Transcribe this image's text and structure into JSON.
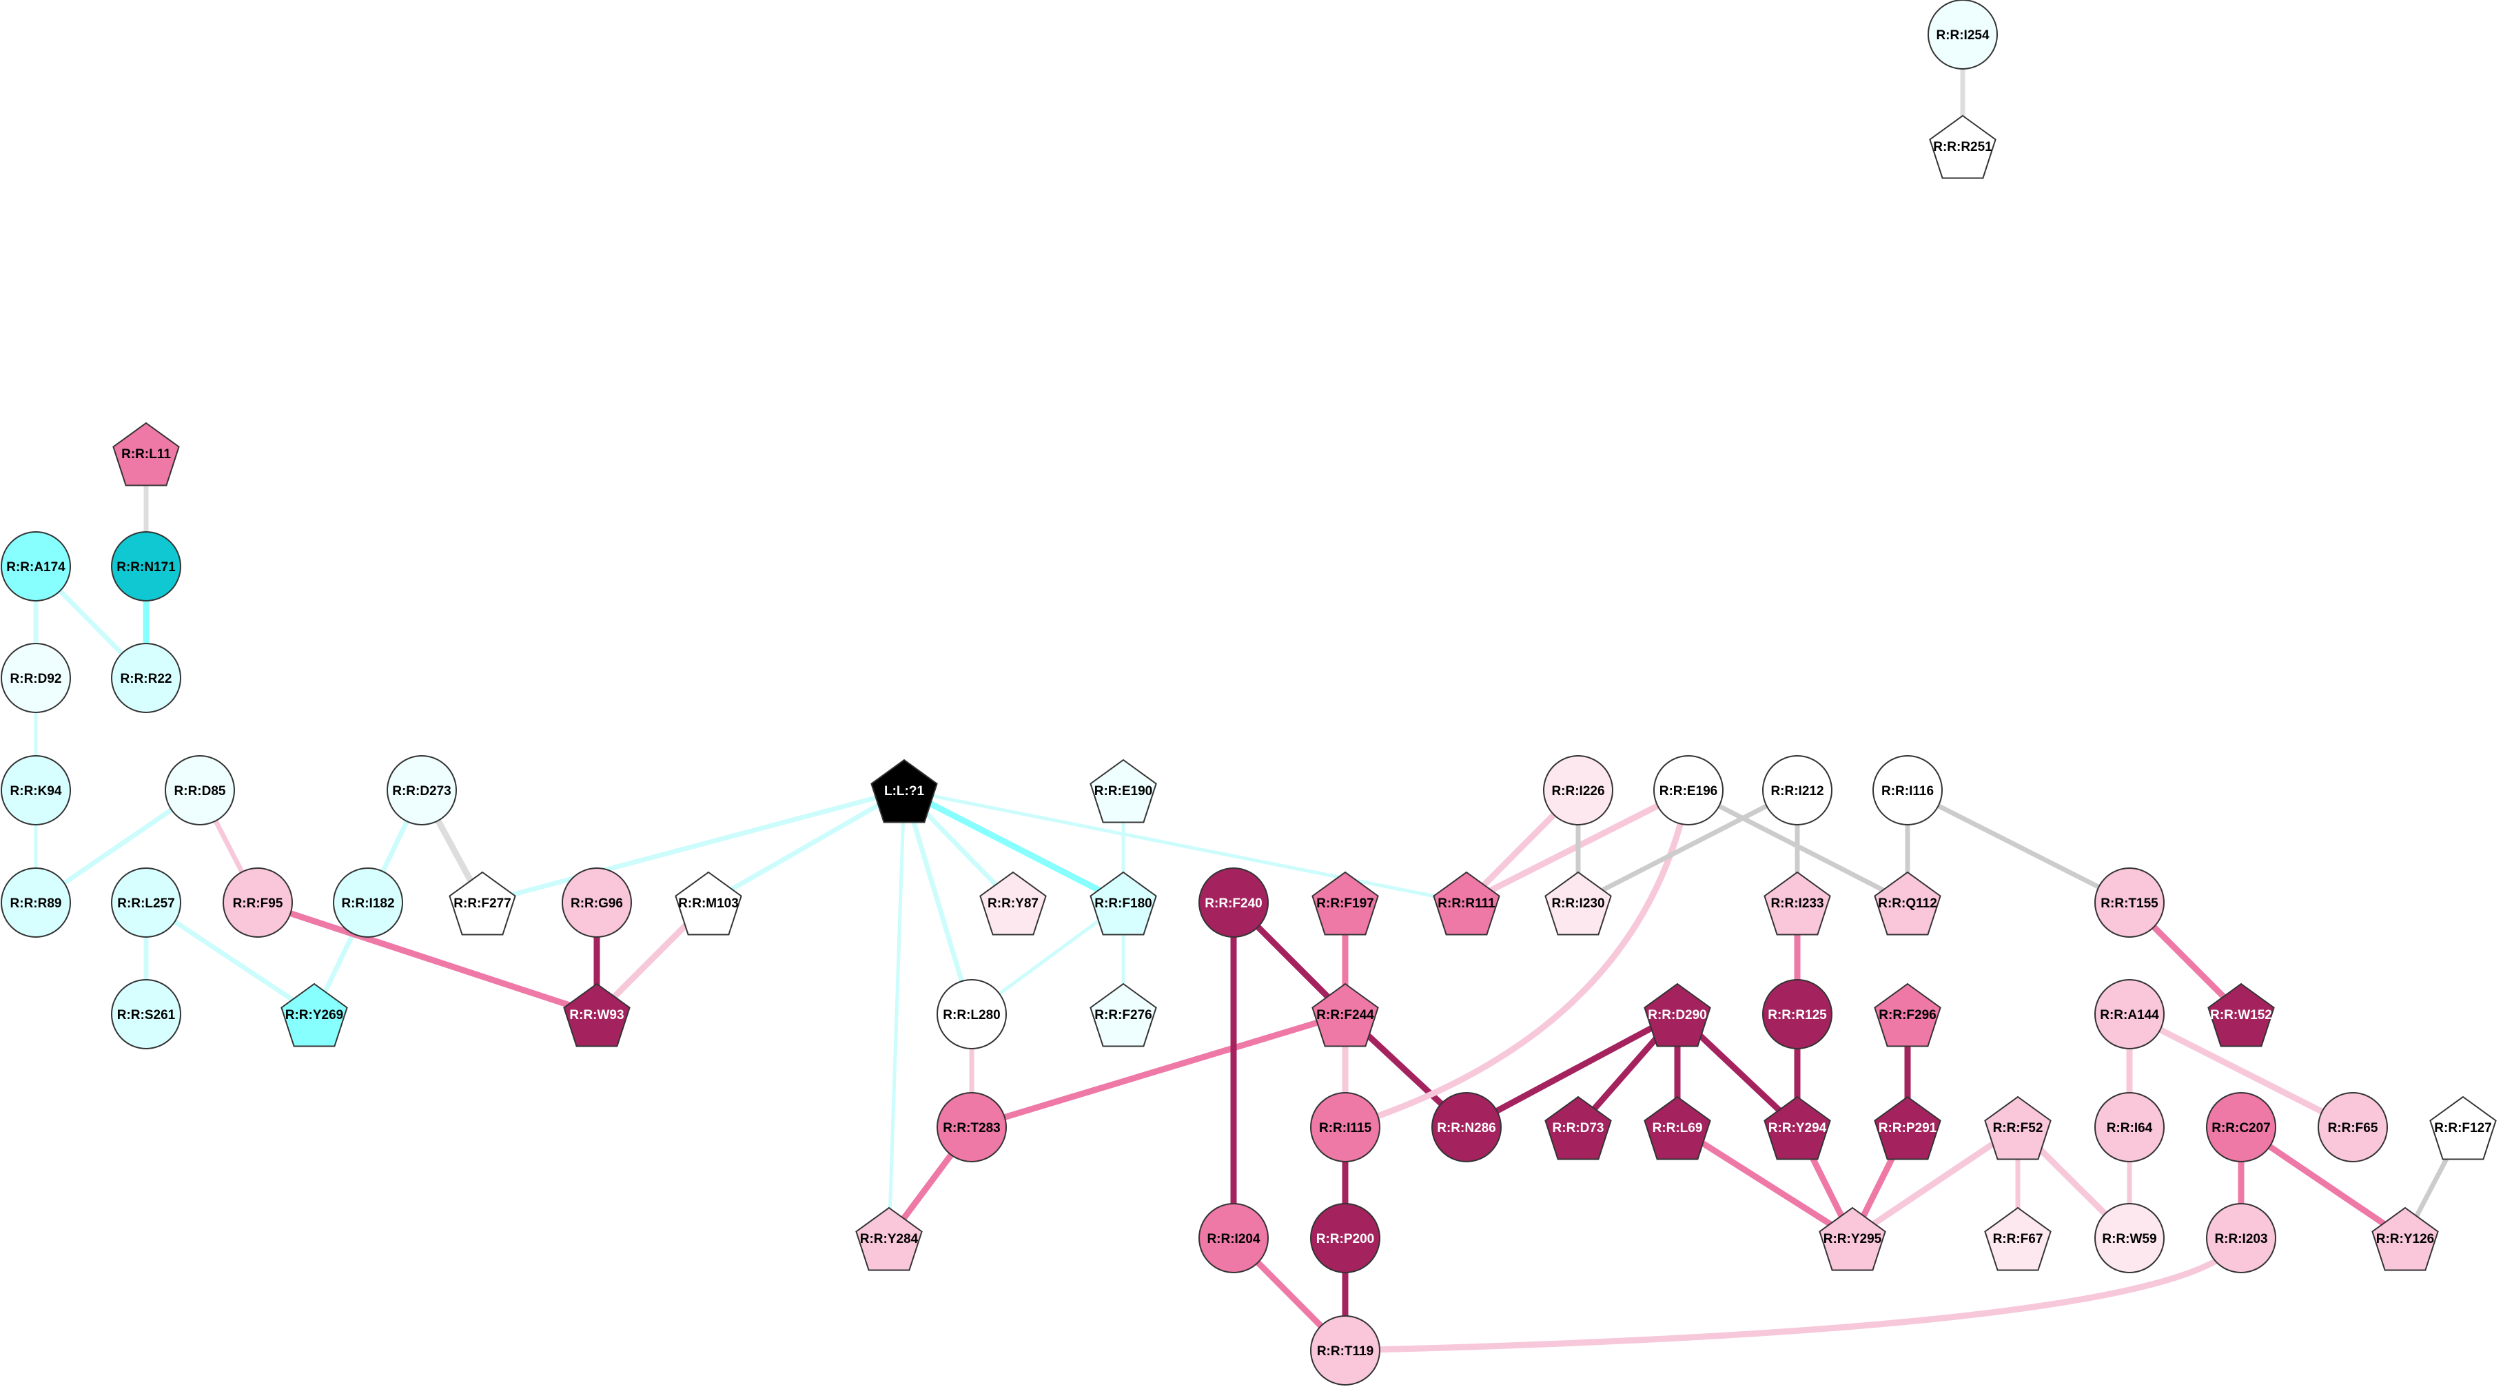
{
  "colors": {
    "cyan_strong": "#0fc8d2",
    "cyan": "#88ffff",
    "cyan_light": "#d8ffff",
    "cyan_pale": "#effefe",
    "white": "#ffffff",
    "pink_pale": "#fde8f0",
    "pink_light": "#f9c6da",
    "pink": "#ee78a6",
    "magenta": "#a4235e",
    "black": "#000000",
    "edge_cyan": "#88ffff",
    "edge_cyan_light": "#ccfcfc",
    "edge_pink": "#ee78a6",
    "edge_pink_light": "#f7c7da",
    "edge_magenta": "#a4235e",
    "edge_grey": "#dddddd"
  },
  "nodes": [
    {
      "id": "L:L:?1",
      "label": "L:L:?1",
      "shape": "pentagon",
      "fill": "black",
      "text": "white"
    },
    {
      "id": "R:R:I254",
      "label": "R:R:I254",
      "shape": "circle",
      "fill": "cyan_pale",
      "text": "black"
    },
    {
      "id": "R:R:R251",
      "label": "R:R:R251",
      "shape": "pentagon",
      "fill": "white",
      "text": "black"
    },
    {
      "id": "R:R:L11",
      "label": "R:R:L11",
      "shape": "pentagon",
      "fill": "pink",
      "text": "black"
    },
    {
      "id": "R:R:A174",
      "label": "R:R:A174",
      "shape": "circle",
      "fill": "cyan",
      "text": "black"
    },
    {
      "id": "R:R:N171",
      "label": "R:R:N171",
      "shape": "circle",
      "fill": "cyan_strong",
      "text": "black"
    },
    {
      "id": "R:R:D92",
      "label": "R:R:D92",
      "shape": "circle",
      "fill": "cyan_pale",
      "text": "black"
    },
    {
      "id": "R:R:R22",
      "label": "R:R:R22",
      "shape": "circle",
      "fill": "cyan_light",
      "text": "black"
    },
    {
      "id": "R:R:K94",
      "label": "R:R:K94",
      "shape": "circle",
      "fill": "cyan_light",
      "text": "black"
    },
    {
      "id": "R:R:D85",
      "label": "R:R:D85",
      "shape": "circle",
      "fill": "cyan_pale",
      "text": "black"
    },
    {
      "id": "R:R:D273",
      "label": "R:R:D273",
      "shape": "circle",
      "fill": "cyan_pale",
      "text": "black"
    },
    {
      "id": "R:R:E190",
      "label": "R:R:E190",
      "shape": "pentagon",
      "fill": "cyan_pale",
      "text": "black"
    },
    {
      "id": "R:R:I226",
      "label": "R:R:I226",
      "shape": "circle",
      "fill": "pink_pale",
      "text": "black"
    },
    {
      "id": "R:R:E196",
      "label": "R:R:E196",
      "shape": "circle",
      "fill": "white",
      "text": "black"
    },
    {
      "id": "R:R:I212",
      "label": "R:R:I212",
      "shape": "circle",
      "fill": "white",
      "text": "black"
    },
    {
      "id": "R:R:I116",
      "label": "R:R:I116",
      "shape": "circle",
      "fill": "white",
      "text": "black"
    },
    {
      "id": "R:R:R89",
      "label": "R:R:R89",
      "shape": "circle",
      "fill": "cyan_light",
      "text": "black"
    },
    {
      "id": "R:R:L257",
      "label": "R:R:L257",
      "shape": "circle",
      "fill": "cyan_light",
      "text": "black"
    },
    {
      "id": "R:R:F95",
      "label": "R:R:F95",
      "shape": "circle",
      "fill": "pink_light",
      "text": "black"
    },
    {
      "id": "R:R:I182",
      "label": "R:R:I182",
      "shape": "circle",
      "fill": "cyan_light",
      "text": "black"
    },
    {
      "id": "R:R:F277",
      "label": "R:R:F277",
      "shape": "pentagon",
      "fill": "white",
      "text": "black"
    },
    {
      "id": "R:R:G96",
      "label": "R:R:G96",
      "shape": "circle",
      "fill": "pink_light",
      "text": "black"
    },
    {
      "id": "R:R:M103",
      "label": "R:R:M103",
      "shape": "pentagon",
      "fill": "white",
      "text": "black"
    },
    {
      "id": "R:R:Y87",
      "label": "R:R:Y87",
      "shape": "pentagon",
      "fill": "pink_pale",
      "text": "black"
    },
    {
      "id": "R:R:F180",
      "label": "R:R:F180",
      "shape": "pentagon",
      "fill": "cyan_light",
      "text": "black"
    },
    {
      "id": "R:R:F240",
      "label": "R:R:F240",
      "shape": "circle",
      "fill": "magenta",
      "text": "white"
    },
    {
      "id": "R:R:F197",
      "label": "R:R:F197",
      "shape": "pentagon",
      "fill": "pink",
      "text": "black"
    },
    {
      "id": "R:R:R111",
      "label": "R:R:R111",
      "shape": "pentagon",
      "fill": "pink",
      "text": "black"
    },
    {
      "id": "R:R:I230",
      "label": "R:R:I230",
      "shape": "pentagon",
      "fill": "pink_pale",
      "text": "black"
    },
    {
      "id": "R:R:I233",
      "label": "R:R:I233",
      "shape": "pentagon",
      "fill": "pink_light",
      "text": "black"
    },
    {
      "id": "R:R:Q112",
      "label": "R:R:Q112",
      "shape": "pentagon",
      "fill": "pink_light",
      "text": "black"
    },
    {
      "id": "R:R:T155",
      "label": "R:R:T155",
      "shape": "circle",
      "fill": "pink_light",
      "text": "black"
    },
    {
      "id": "R:R:S261",
      "label": "R:R:S261",
      "shape": "circle",
      "fill": "cyan_light",
      "text": "black"
    },
    {
      "id": "R:R:Y269",
      "label": "R:R:Y269",
      "shape": "pentagon",
      "fill": "cyan",
      "text": "black"
    },
    {
      "id": "R:R:W93",
      "label": "R:R:W93",
      "shape": "pentagon",
      "fill": "magenta",
      "text": "white"
    },
    {
      "id": "R:R:L280",
      "label": "R:R:L280",
      "shape": "circle",
      "fill": "white",
      "text": "black"
    },
    {
      "id": "R:R:F276",
      "label": "R:R:F276",
      "shape": "pentagon",
      "fill": "cyan_pale",
      "text": "black"
    },
    {
      "id": "R:R:F244",
      "label": "R:R:F244",
      "shape": "pentagon",
      "fill": "pink",
      "text": "black"
    },
    {
      "id": "R:R:D290",
      "label": "R:R:D290",
      "shape": "pentagon",
      "fill": "magenta",
      "text": "white"
    },
    {
      "id": "R:R:R125",
      "label": "R:R:R125",
      "shape": "circle",
      "fill": "magenta",
      "text": "white"
    },
    {
      "id": "R:R:F296",
      "label": "R:R:F296",
      "shape": "pentagon",
      "fill": "pink",
      "text": "black"
    },
    {
      "id": "R:R:A144",
      "label": "R:R:A144",
      "shape": "circle",
      "fill": "pink_light",
      "text": "black"
    },
    {
      "id": "R:R:W152",
      "label": "R:R:W152",
      "shape": "pentagon",
      "fill": "magenta",
      "text": "white"
    },
    {
      "id": "R:R:T283",
      "label": "R:R:T283",
      "shape": "circle",
      "fill": "pink",
      "text": "black"
    },
    {
      "id": "R:R:I115",
      "label": "R:R:I115",
      "shape": "circle",
      "fill": "pink",
      "text": "black"
    },
    {
      "id": "R:R:N286",
      "label": "R:R:N286",
      "shape": "circle",
      "fill": "magenta",
      "text": "white"
    },
    {
      "id": "R:R:D73",
      "label": "R:R:D73",
      "shape": "pentagon",
      "fill": "magenta",
      "text": "white"
    },
    {
      "id": "R:R:L69",
      "label": "R:R:L69",
      "shape": "pentagon",
      "fill": "magenta",
      "text": "white"
    },
    {
      "id": "R:R:Y294",
      "label": "R:R:Y294",
      "shape": "pentagon",
      "fill": "magenta",
      "text": "white"
    },
    {
      "id": "R:R:P291",
      "label": "R:R:P291",
      "shape": "pentagon",
      "fill": "magenta",
      "text": "white"
    },
    {
      "id": "R:R:F52",
      "label": "R:R:F52",
      "shape": "pentagon",
      "fill": "pink_light",
      "text": "black"
    },
    {
      "id": "R:R:I64",
      "label": "R:R:I64",
      "shape": "circle",
      "fill": "pink_light",
      "text": "black"
    },
    {
      "id": "R:R:C207",
      "label": "R:R:C207",
      "shape": "circle",
      "fill": "pink",
      "text": "black"
    },
    {
      "id": "R:R:F65",
      "label": "R:R:F65",
      "shape": "circle",
      "fill": "pink_light",
      "text": "black"
    },
    {
      "id": "R:R:F127",
      "label": "R:R:F127",
      "shape": "pentagon",
      "fill": "white",
      "text": "black"
    },
    {
      "id": "R:R:Y284",
      "label": "R:R:Y284",
      "shape": "pentagon",
      "fill": "pink_light",
      "text": "black"
    },
    {
      "id": "R:R:I204",
      "label": "R:R:I204",
      "shape": "circle",
      "fill": "pink",
      "text": "black"
    },
    {
      "id": "R:R:P200",
      "label": "R:R:P200",
      "shape": "circle",
      "fill": "magenta",
      "text": "white"
    },
    {
      "id": "R:R:Y295",
      "label": "R:R:Y295",
      "shape": "pentagon",
      "fill": "pink_light",
      "text": "black"
    },
    {
      "id": "R:R:F67",
      "label": "R:R:F67",
      "shape": "pentagon",
      "fill": "pink_pale",
      "text": "black"
    },
    {
      "id": "R:R:W59",
      "label": "R:R:W59",
      "shape": "circle",
      "fill": "pink_pale",
      "text": "black"
    },
    {
      "id": "R:R:I203",
      "label": "R:R:I203",
      "shape": "circle",
      "fill": "pink_light",
      "text": "black"
    },
    {
      "id": "R:R:Y126",
      "label": "R:R:Y126",
      "shape": "pentagon",
      "fill": "pink_light",
      "text": "black"
    },
    {
      "id": "R:R:T119",
      "label": "R:R:T119",
      "shape": "circle",
      "fill": "pink_light",
      "text": "black"
    }
  ],
  "edges": [
    {
      "from": "R:R:I254",
      "to": "R:R:R251",
      "color": "edge_grey",
      "weight": "medium"
    },
    {
      "from": "R:R:L11",
      "to": "R:R:N171",
      "color": "edge_grey",
      "weight": "medium"
    },
    {
      "from": "R:R:A174",
      "to": "R:R:D92",
      "color": "edge_cyan_light",
      "weight": "medium"
    },
    {
      "from": "R:R:A174",
      "to": "R:R:R22",
      "color": "edge_cyan_light",
      "weight": "medium"
    },
    {
      "from": "R:R:N171",
      "to": "R:R:R22",
      "color": "edge_cyan",
      "weight": "thick"
    },
    {
      "from": "R:R:D92",
      "to": "R:R:K94",
      "color": "edge_cyan_light",
      "weight": "thin"
    },
    {
      "from": "R:R:K94",
      "to": "R:R:R89",
      "color": "edge_cyan_light",
      "weight": "thin"
    },
    {
      "from": "R:R:D85",
      "to": "R:R:R89",
      "color": "edge_cyan_light",
      "weight": "medium"
    },
    {
      "from": "R:R:D85",
      "to": "R:R:F95",
      "color": "edge_pink_light",
      "weight": "medium"
    },
    {
      "from": "R:R:D273",
      "to": "R:R:I182",
      "color": "edge_cyan_light",
      "weight": "medium"
    },
    {
      "from": "R:R:D273",
      "to": "R:R:F277",
      "color": "edge_grey",
      "weight": "thick"
    },
    {
      "from": "R:R:L257",
      "to": "R:R:S261",
      "color": "edge_cyan_light",
      "weight": "medium"
    },
    {
      "from": "R:R:L257",
      "to": "R:R:Y269",
      "color": "edge_cyan_light",
      "weight": "medium"
    },
    {
      "from": "R:R:I182",
      "to": "R:R:Y269",
      "color": "edge_cyan_light",
      "weight": "medium"
    },
    {
      "from": "R:R:F95",
      "to": "R:R:W93",
      "color": "edge_pink",
      "weight": "thick"
    },
    {
      "from": "R:R:G96",
      "to": "R:R:W93",
      "color": "edge_magenta",
      "weight": "thick"
    },
    {
      "from": "R:R:M103",
      "to": "R:R:W93",
      "color": "edge_pink_light",
      "weight": "thick"
    },
    {
      "from": "L:L:?1",
      "to": "R:R:F277",
      "color": "edge_cyan_light",
      "weight": "medium"
    },
    {
      "from": "L:L:?1",
      "to": "R:R:M103",
      "color": "edge_cyan_light",
      "weight": "medium"
    },
    {
      "from": "L:L:?1",
      "to": "R:R:Y87",
      "color": "edge_cyan_light",
      "weight": "medium"
    },
    {
      "from": "L:L:?1",
      "to": "R:R:F180",
      "color": "edge_cyan",
      "weight": "thick"
    },
    {
      "from": "L:L:?1",
      "to": "R:R:L280",
      "color": "edge_cyan_light",
      "weight": "medium"
    },
    {
      "from": "L:L:?1",
      "to": "R:R:Y284",
      "color": "edge_cyan_light",
      "weight": "thin"
    },
    {
      "from": "L:L:?1",
      "to": "R:R:R111",
      "color": "edge_cyan_light",
      "weight": "thin"
    },
    {
      "from": "R:R:E190",
      "to": "R:R:F180",
      "color": "edge_cyan_light",
      "weight": "thin"
    },
    {
      "from": "R:R:F180",
      "to": "R:R:F276",
      "color": "edge_cyan_light",
      "weight": "thin"
    },
    {
      "from": "R:R:F180",
      "to": "R:R:L280",
      "color": "edge_cyan_light",
      "weight": "thin"
    },
    {
      "from": "R:R:L280",
      "to": "R:R:T283",
      "color": "edge_pink_light",
      "weight": "medium"
    },
    {
      "from": "R:R:T283",
      "to": "R:R:Y284",
      "color": "edge_pink",
      "weight": "thick"
    },
    {
      "from": "R:R:F244",
      "to": "R:R:T283",
      "color": "edge_pink",
      "weight": "thick"
    },
    {
      "from": "R:R:F240",
      "to": "R:R:F244",
      "color": "edge_magenta",
      "weight": "thick"
    },
    {
      "from": "R:R:F240",
      "to": "R:R:I204",
      "color": "edge_magenta",
      "weight": "thick"
    },
    {
      "from": "R:R:F197",
      "to": "R:R:F244",
      "color": "edge_pink",
      "weight": "thick"
    },
    {
      "from": "R:R:F244",
      "to": "R:R:I115",
      "color": "edge_pink_light",
      "weight": "thick"
    },
    {
      "from": "R:R:F244",
      "to": "R:R:N286",
      "color": "edge_magenta",
      "weight": "thick"
    },
    {
      "from": "R:R:I115",
      "to": "R:R:P200",
      "color": "edge_magenta",
      "weight": "thick"
    },
    {
      "from": "R:R:P200",
      "to": "R:R:T119",
      "color": "edge_magenta",
      "weight": "thick"
    },
    {
      "from": "R:R:I204",
      "to": "R:R:T119",
      "color": "edge_pink",
      "weight": "thick"
    },
    {
      "from": "R:R:I203",
      "to": "R:R:T119",
      "color": "edge_pink_light",
      "weight": "thick",
      "curve": true
    },
    {
      "from": "R:R:E196",
      "to": "R:R:R111",
      "color": "edge_pink_light",
      "weight": "thick"
    },
    {
      "from": "R:R:I226",
      "to": "R:R:R111",
      "color": "edge_pink_light",
      "weight": "thick"
    },
    {
      "from": "R:R:I226",
      "to": "R:R:I230",
      "color": "edge_pink_pale",
      "weight": "medium"
    },
    {
      "from": "R:R:E196",
      "to": "R:R:Q112",
      "color": "edge_pink_pale",
      "weight": "medium"
    },
    {
      "from": "R:R:E196",
      "to": "R:R:I115",
      "color": "edge_pink_light",
      "weight": "thick",
      "curve": true
    },
    {
      "from": "R:R:I212",
      "to": "R:R:I230",
      "color": "edge_pink_pale",
      "weight": "medium"
    },
    {
      "from": "R:R:I212",
      "to": "R:R:I233",
      "color": "edge_pink_pale",
      "weight": "medium"
    },
    {
      "from": "R:R:I116",
      "to": "R:R:Q112",
      "color": "edge_pink_pale",
      "weight": "medium"
    },
    {
      "from": "R:R:I116",
      "to": "R:R:T155",
      "color": "edge_pink_pale",
      "weight": "medium"
    },
    {
      "from": "R:R:T155",
      "to": "R:R:W152",
      "color": "edge_pink",
      "weight": "thick"
    },
    {
      "from": "R:R:I233",
      "to": "R:R:R125",
      "color": "edge_pink",
      "weight": "thick"
    },
    {
      "from": "R:R:R125",
      "to": "R:R:Y294",
      "color": "edge_magenta",
      "weight": "thick"
    },
    {
      "from": "R:R:D290",
      "to": "R:R:N286",
      "color": "edge_magenta",
      "weight": "thick"
    },
    {
      "from": "R:R:D290",
      "to": "R:R:D73",
      "color": "edge_magenta",
      "weight": "thick"
    },
    {
      "from": "R:R:D290",
      "to": "R:R:L69",
      "color": "edge_magenta",
      "weight": "thick"
    },
    {
      "from": "R:R:D290",
      "to": "R:R:Y294",
      "color": "edge_magenta",
      "weight": "thick"
    },
    {
      "from": "R:R:L69",
      "to": "R:R:Y295",
      "color": "edge_pink",
      "weight": "thick"
    },
    {
      "from": "R:R:Y294",
      "to": "R:R:Y295",
      "color": "edge_pink",
      "weight": "thick"
    },
    {
      "from": "R:R:F296",
      "to": "R:R:P291",
      "color": "edge_magenta",
      "weight": "thick"
    },
    {
      "from": "R:R:P291",
      "to": "R:R:Y295",
      "color": "edge_pink",
      "weight": "thick"
    },
    {
      "from": "R:R:F52",
      "to": "R:R:Y295",
      "color": "edge_pink_light",
      "weight": "thick"
    },
    {
      "from": "R:R:F52",
      "to": "R:R:F67",
      "color": "edge_pink_light",
      "weight": "medium"
    },
    {
      "from": "R:R:F52",
      "to": "R:R:W59",
      "color": "edge_pink_light",
      "weight": "thick"
    },
    {
      "from": "R:R:A144",
      "to": "R:R:I64",
      "color": "edge_pink_light",
      "weight": "thick"
    },
    {
      "from": "R:R:A144",
      "to": "R:R:F65",
      "color": "edge_pink_light",
      "weight": "thick"
    },
    {
      "from": "R:R:I64",
      "to": "R:R:W59",
      "color": "edge_pink_light",
      "weight": "medium"
    },
    {
      "from": "R:R:C207",
      "to": "R:R:I203",
      "color": "edge_pink",
      "weight": "thick"
    },
    {
      "from": "R:R:C207",
      "to": "R:R:Y126",
      "color": "edge_pink",
      "weight": "thick"
    },
    {
      "from": "R:R:F127",
      "to": "R:R:Y126",
      "color": "edge_pink_pale",
      "weight": "medium"
    }
  ]
}
